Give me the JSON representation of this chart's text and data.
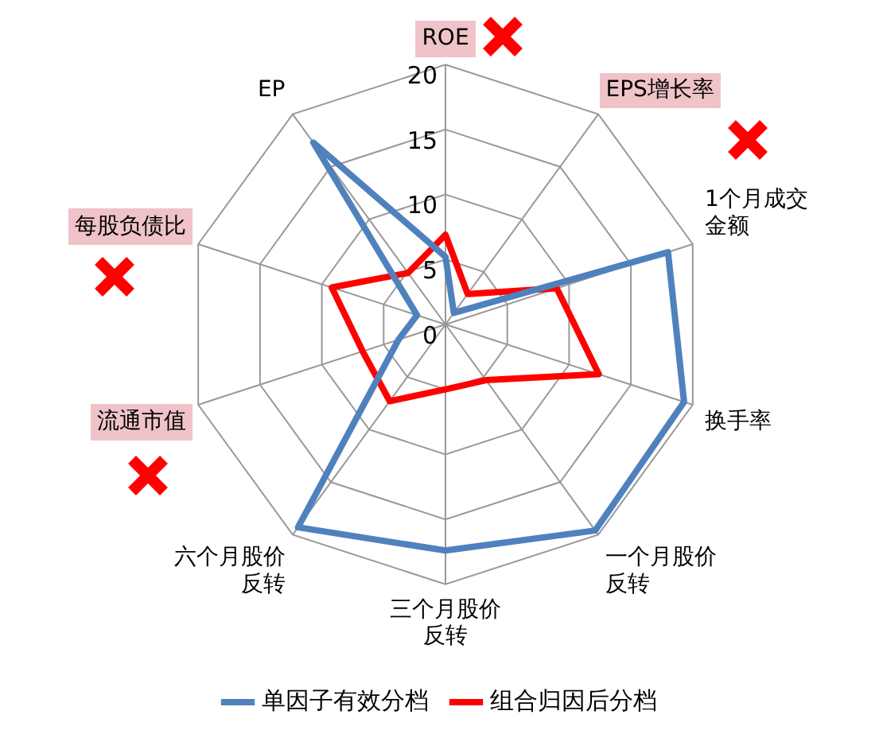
{
  "chart_data": {
    "type": "radar",
    "categories": [
      "ROE",
      "EPS增长率",
      "1个月成交金额",
      "换手率",
      "一个月股价反转",
      "三个月股价反转",
      "六个月股价反转",
      "流通市值",
      "每股负债比",
      "EP"
    ],
    "series": [
      {
        "name": "单因子有效分档",
        "color": "#4f81bd",
        "values": [
          5.2,
          1.1,
          18,
          19.3,
          19.6,
          17.4,
          19.3,
          3.8,
          2.3,
          17.3
        ]
      },
      {
        "name": "组合归因后分档",
        "color": "#ff0000",
        "values": [
          6.9,
          2.9,
          9,
          12.4,
          5.3,
          5,
          7.3,
          6.7,
          9.2,
          4.9
        ]
      }
    ],
    "ylim": [
      0,
      20
    ],
    "yticks": [
      0,
      5,
      10,
      15,
      20
    ],
    "grid": true,
    "legend": "bottom",
    "marker": "none"
  }
}
